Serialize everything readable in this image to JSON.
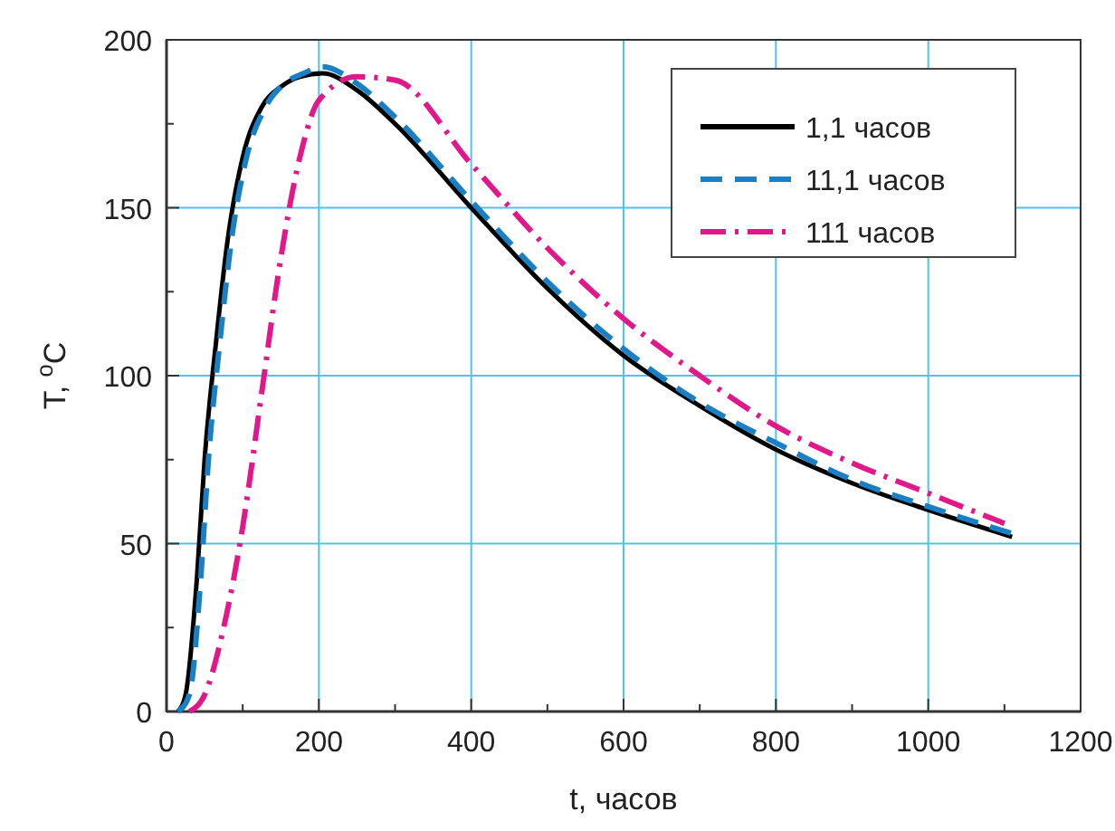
{
  "chart_data": {
    "type": "line",
    "xlabel": "t, часов",
    "ylabel": "T, $^{o}$C",
    "xlim": [
      0,
      1200
    ],
    "ylim": [
      0,
      200
    ],
    "xticks": [
      0,
      {
        "value": 100,
        "label": null
      },
      200,
      {
        "value": 300,
        "label": null
      },
      400,
      {
        "value": 500,
        "label": null
      },
      600,
      {
        "value": 700,
        "label": null
      },
      800,
      {
        "value": 900,
        "label": null
      },
      1000,
      {
        "value": 1100,
        "label": null
      },
      1200
    ],
    "yticks": [
      0,
      {
        "value": 25,
        "label": null
      },
      50,
      {
        "value": 75,
        "label": null
      },
      100,
      {
        "value": 125,
        "label": null
      },
      150,
      {
        "value": 175,
        "label": null
      },
      200
    ],
    "grid": true,
    "legend": "top right",
    "series": [
      {
        "name": "1,1 часов",
        "color": "#000000",
        "line_style": "solid",
        "x": [
          15,
          25,
          40,
          50,
          65,
          80,
          100,
          125,
          150,
          175,
          205,
          250,
          300,
          400,
          500,
          600,
          700,
          800,
          900,
          1000,
          1110
        ],
        "values": [
          0,
          5,
          40,
          75,
          110,
          140,
          165,
          180,
          186,
          189,
          190,
          185,
          175,
          150,
          126,
          106,
          91,
          78,
          68,
          60,
          52
        ]
      },
      {
        "name": "11,1 часов",
        "color": "#1a7fc4",
        "line_style": "dashed",
        "x": [
          15,
          30,
          45,
          55,
          70,
          85,
          105,
          130,
          155,
          180,
          205,
          250,
          300,
          400,
          500,
          600,
          700,
          800,
          900,
          1000,
          1110
        ],
        "values": [
          0,
          5,
          40,
          75,
          110,
          140,
          165,
          180,
          187,
          190,
          192,
          187,
          177,
          152,
          128,
          108,
          92,
          80,
          69,
          61,
          53
        ]
      },
      {
        "name": "111 часов",
        "color": "#e0188a",
        "line_style": "dashdot",
        "x": [
          30,
          50,
          75,
          100,
          125,
          150,
          175,
          200,
          250,
          300,
          400,
          500,
          600,
          700,
          800,
          900,
          1000,
          1100
        ],
        "values": [
          0,
          5,
          25,
          55,
          95,
          135,
          165,
          182,
          189,
          188,
          163,
          138,
          117,
          100,
          85,
          74,
          65,
          56
        ]
      }
    ]
  }
}
